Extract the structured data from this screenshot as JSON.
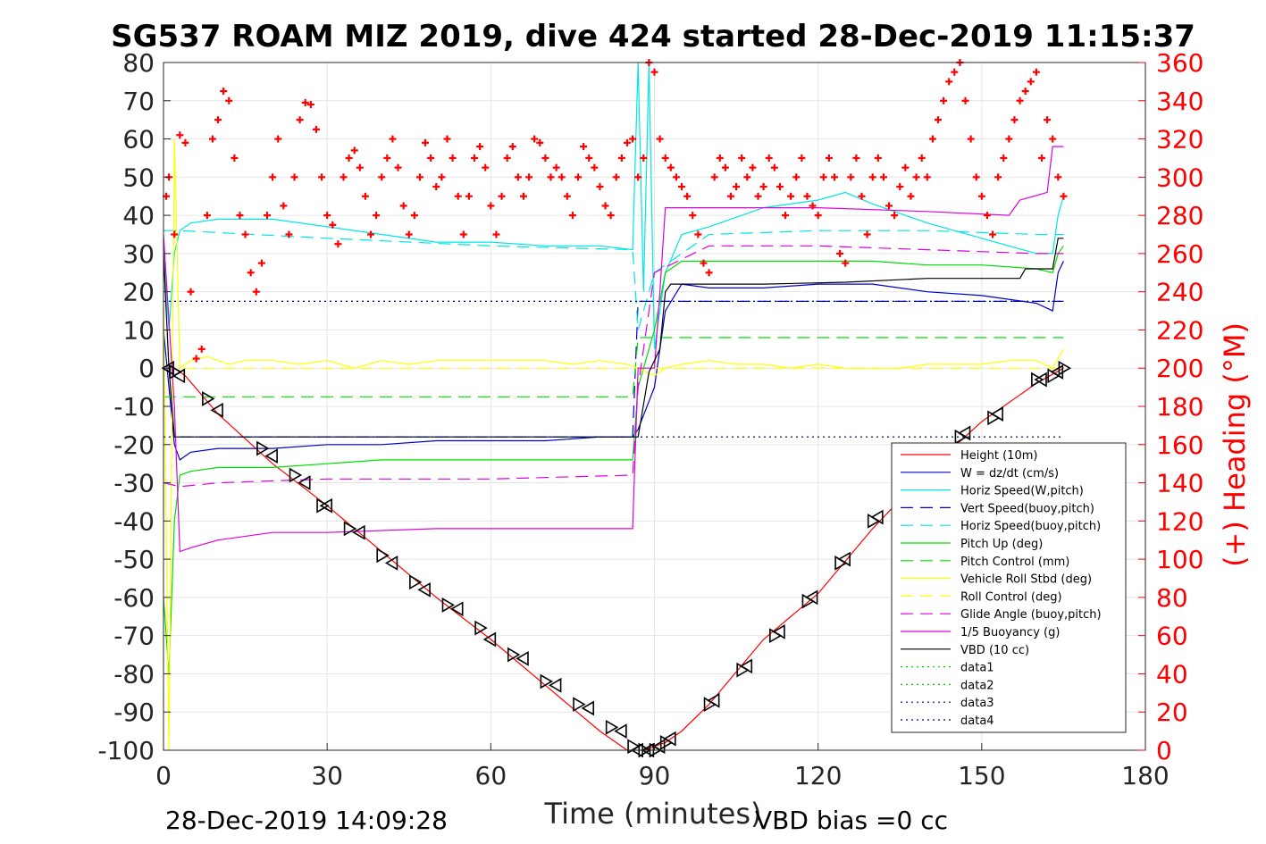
{
  "chart_data": {
    "type": "line",
    "title": "SG537 ROAM MIZ 2019, dive 424 started 28-Dec-2019 11:15:37",
    "xlabel": "Time (minutes)",
    "ylabel_right": "(+) Heading (°M)",
    "footer_left": "28-Dec-2019 14:09:28",
    "footer_right": "VBD bias =0 cc",
    "xlim": [
      0,
      180
    ],
    "ylim_left": [
      -100,
      80
    ],
    "ylim_right": [
      0,
      360
    ],
    "xticks": [
      "0",
      "30",
      "60",
      "90",
      "120",
      "150",
      "180"
    ],
    "yticks_left": [
      "80",
      "70",
      "60",
      "50",
      "40",
      "30",
      "20",
      "10",
      "0",
      "-10",
      "-20",
      "-30",
      "-40",
      "-50",
      "-60",
      "-70",
      "-80",
      "-90",
      "-100"
    ],
    "yticks_right": [
      "360",
      "340",
      "320",
      "300",
      "280",
      "260",
      "240",
      "220",
      "200",
      "180",
      "160",
      "140",
      "120",
      "100",
      "80",
      "60",
      "40",
      "20",
      "0"
    ],
    "grid": true,
    "legend_position": "bottom-right",
    "legend": [
      {
        "label": "Height (10m)",
        "color": "#ff0000",
        "dash": "solid"
      },
      {
        "label": "W = dz/dt (cm/s)",
        "color": "#0000cc",
        "dash": "solid"
      },
      {
        "label": "Horiz Speed(W,pitch)",
        "color": "#00e5e5",
        "dash": "solid"
      },
      {
        "label": "Vert Speed(buoy,pitch)",
        "color": "#0000cc",
        "dash": "dashed"
      },
      {
        "label": "Horiz Speed(buoy,pitch)",
        "color": "#00e5e5",
        "dash": "dashed"
      },
      {
        "label": "Pitch Up (deg)",
        "color": "#00dd00",
        "dash": "solid"
      },
      {
        "label": "Pitch Control (mm)",
        "color": "#00dd00",
        "dash": "dashed"
      },
      {
        "label": "Vehicle Roll Stbd (deg)",
        "color": "#ffff00",
        "dash": "solid"
      },
      {
        "label": "Roll Control (deg)",
        "color": "#ffff00",
        "dash": "dashed"
      },
      {
        "label": "Glide Angle (buoy,pitch)",
        "color": "#dd00dd",
        "dash": "dashed"
      },
      {
        "label": "1/5 Buoyancy (g)",
        "color": "#dd00dd",
        "dash": "solid"
      },
      {
        "label": "VBD (10 cc)",
        "color": "#000000",
        "dash": "solid"
      },
      {
        "label": "data1",
        "color": "#00cc00",
        "dash": "dotted"
      },
      {
        "label": "data2",
        "color": "#00cc00",
        "dash": "dotted"
      },
      {
        "label": "data3",
        "color": "#000080",
        "dash": "dotted"
      },
      {
        "label": "data4",
        "color": "#000080",
        "dash": "dotted"
      }
    ],
    "series": [
      {
        "name": "Height (10m)",
        "color": "#ff0000",
        "dash": "solid",
        "x": [
          0,
          2,
          4,
          10,
          20,
          30,
          40,
          50,
          60,
          70,
          80,
          85,
          88,
          90,
          92,
          95,
          100,
          110,
          120,
          130,
          140,
          150,
          160,
          165
        ],
        "y": [
          0,
          0,
          -2,
          -12,
          -25,
          -36,
          -48,
          -60,
          -71,
          -83,
          -95,
          -100,
          -100,
          -99,
          -98,
          -95,
          -88,
          -71,
          -59,
          -42,
          -27,
          -14,
          -4,
          0
        ]
      },
      {
        "name": "W = dz/dt (cm/s)",
        "color": "#0000cc",
        "dash": "solid",
        "x": [
          0,
          1,
          2,
          3,
          5,
          10,
          20,
          30,
          40,
          50,
          60,
          70,
          80,
          86,
          87,
          90,
          92,
          95,
          100,
          110,
          120,
          130,
          140,
          150,
          160,
          163,
          164,
          165
        ],
        "y": [
          10,
          -5,
          -20,
          -24,
          -22,
          -21,
          -21,
          -20,
          -20,
          -19,
          -19,
          -19,
          -18,
          -18,
          -16,
          -5,
          15,
          22,
          21,
          21,
          22,
          22,
          20,
          19,
          17,
          15,
          25,
          28
        ]
      },
      {
        "name": "Horiz Speed(W,pitch)",
        "color": "#00e5e5",
        "dash": "solid",
        "x": [
          0,
          1,
          2,
          3,
          5,
          10,
          20,
          30,
          40,
          50,
          60,
          70,
          80,
          86,
          87,
          88,
          89,
          90,
          92,
          95,
          100,
          110,
          120,
          125,
          130,
          140,
          150,
          160,
          163,
          164,
          165
        ],
        "y": [
          30,
          10,
          30,
          36,
          38,
          39,
          39,
          37,
          35,
          33,
          33,
          32,
          32,
          31,
          80,
          20,
          80,
          5,
          25,
          35,
          37,
          42,
          44,
          46,
          43,
          38,
          34,
          30,
          30,
          40,
          45
        ]
      },
      {
        "name": "Vert Speed(buoy,pitch)",
        "color": "#0000cc",
        "dash": "dashed",
        "x": [
          3,
          86,
          87,
          165
        ],
        "y": [
          -18,
          -18,
          17.5,
          17.5
        ]
      },
      {
        "name": "Horiz Speed(buoy,pitch)",
        "color": "#00e5e5",
        "dash": "dashed",
        "x": [
          0,
          3,
          30,
          60,
          86,
          87,
          90,
          100,
          120,
          140,
          160,
          165
        ],
        "y": [
          36,
          36,
          34,
          32,
          31,
          10,
          25,
          35,
          36,
          36,
          35,
          35
        ]
      },
      {
        "name": "Pitch Up (deg)",
        "color": "#00dd00",
        "dash": "solid",
        "x": [
          0,
          1,
          2,
          3,
          5,
          10,
          20,
          30,
          40,
          50,
          60,
          70,
          80,
          86,
          87,
          90,
          92,
          95,
          100,
          110,
          120,
          130,
          140,
          150,
          160,
          163,
          164,
          165
        ],
        "y": [
          -60,
          -80,
          -40,
          -28,
          -27,
          -26,
          -26,
          -25,
          -24,
          -24,
          -24,
          -24,
          -24,
          -24,
          -5,
          10,
          25,
          28,
          28,
          28,
          28,
          28,
          27,
          27,
          26,
          25,
          30,
          32
        ]
      },
      {
        "name": "Pitch Control (mm)",
        "color": "#00dd00",
        "dash": "dashed",
        "x": [
          0,
          3,
          86,
          87,
          165
        ],
        "y": [
          -7.5,
          -7.5,
          -7.5,
          8,
          8
        ]
      },
      {
        "name": "Vehicle Roll Stbd (deg)",
        "color": "#ffff00",
        "dash": "solid",
        "x": [
          0,
          1,
          2,
          3,
          5,
          8,
          10,
          12,
          15,
          20,
          25,
          30,
          35,
          40,
          45,
          50,
          55,
          60,
          65,
          70,
          75,
          80,
          85,
          87,
          90,
          92,
          95,
          100,
          105,
          110,
          115,
          120,
          125,
          130,
          135,
          140,
          145,
          150,
          155,
          160,
          163,
          165
        ],
        "y": [
          15,
          -100,
          60,
          0,
          2,
          3,
          2,
          1,
          2,
          2,
          1,
          2,
          0,
          2,
          1,
          2,
          2,
          2,
          2,
          2,
          1,
          2,
          1,
          0,
          -2,
          0,
          1,
          2,
          1,
          1,
          0,
          1,
          0,
          0,
          0,
          1,
          1,
          1,
          2,
          2,
          0,
          5
        ]
      },
      {
        "name": "Roll Control (deg)",
        "color": "#ffff00",
        "dash": "dashed",
        "x": [
          0,
          165
        ],
        "y": [
          0,
          0
        ]
      },
      {
        "name": "Glide Angle (buoy,pitch)",
        "color": "#dd00dd",
        "dash": "dashed",
        "x": [
          0,
          3,
          10,
          30,
          60,
          86,
          87,
          90,
          100,
          120,
          140,
          160,
          165
        ],
        "y": [
          -30,
          -31,
          -30,
          -29,
          -29,
          -28,
          -5,
          25,
          32,
          32,
          31,
          30,
          30
        ]
      },
      {
        "name": "1/5 Buoyancy (g)",
        "color": "#dd00dd",
        "dash": "solid",
        "x": [
          0,
          2,
          3,
          5,
          10,
          20,
          30,
          50,
          70,
          86,
          87,
          90,
          91,
          92,
          100,
          120,
          140,
          155,
          157,
          162,
          163,
          165
        ],
        "y": [
          35,
          -10,
          -48,
          -47,
          -45,
          -43,
          -43,
          -42,
          -42,
          -42,
          0,
          0,
          20,
          42,
          42,
          42,
          41,
          40,
          44,
          46,
          58,
          58
        ]
      },
      {
        "name": "VBD (10 cc)",
        "color": "#000000",
        "dash": "solid",
        "x": [
          0,
          1,
          2,
          86,
          87,
          89,
          91,
          92,
          93,
          110,
          125,
          140,
          157,
          158,
          163,
          164,
          165
        ],
        "y": [
          30,
          0,
          -18,
          -18,
          -18,
          -1,
          5,
          20,
          22,
          22,
          22.5,
          23.5,
          23.5,
          26,
          26,
          34,
          34
        ]
      },
      {
        "name": "data1",
        "color": "#00cc00",
        "dash": "dotted",
        "x": [
          0,
          165
        ],
        "y": [
          17.5,
          17.5
        ]
      },
      {
        "name": "data2",
        "color": "#00cc00",
        "dash": "dotted",
        "x": [
          0,
          165
        ],
        "y": [
          -18,
          -18
        ]
      },
      {
        "name": "data3",
        "color": "#000080",
        "dash": "dotted",
        "x": [
          0,
          165
        ],
        "y": [
          17.5,
          17.5
        ]
      },
      {
        "name": "data4",
        "color": "#000080",
        "dash": "dotted",
        "x": [
          0,
          165
        ],
        "y": [
          -18,
          -18
        ]
      }
    ],
    "heading_series": {
      "name": "(+) Heading (°M)",
      "color": "#ff0000",
      "marker": "+",
      "x": [
        0.5,
        1,
        2,
        3,
        4,
        5,
        6,
        7,
        8,
        9,
        10,
        11,
        12,
        13,
        14,
        15,
        16,
        17,
        18,
        19,
        20,
        21,
        22,
        23,
        24,
        25,
        26,
        27,
        28,
        29,
        30,
        31,
        32,
        33,
        34,
        35,
        36,
        37,
        38,
        39,
        40,
        41,
        42,
        43,
        44,
        45,
        46,
        47,
        48,
        49,
        50,
        51,
        52,
        53,
        54,
        55,
        56,
        57,
        58,
        59,
        60,
        61,
        62,
        63,
        64,
        65,
        66,
        67,
        68,
        69,
        70,
        71,
        72,
        73,
        74,
        75,
        76,
        77,
        78,
        79,
        80,
        81,
        82,
        83,
        84,
        85,
        86,
        87,
        88,
        89,
        90,
        91,
        92,
        93,
        94,
        95,
        96,
        97,
        98,
        99,
        100,
        101,
        102,
        103,
        104,
        105,
        106,
        107,
        108,
        109,
        110,
        111,
        112,
        113,
        114,
        115,
        116,
        117,
        118,
        119,
        120,
        121,
        122,
        123,
        124,
        125,
        126,
        127,
        128,
        129,
        130,
        131,
        132,
        133,
        134,
        135,
        136,
        137,
        138,
        139,
        140,
        141,
        142,
        143,
        144,
        145,
        146,
        147,
        148,
        149,
        150,
        151,
        152,
        153,
        154,
        155,
        156,
        157,
        158,
        159,
        160,
        161,
        162,
        163,
        164,
        165
      ],
      "y": [
        290,
        300,
        270,
        322,
        318,
        240,
        205,
        210,
        280,
        320,
        330,
        345,
        340,
        310,
        280,
        270,
        250,
        240,
        255,
        280,
        300,
        320,
        285,
        270,
        300,
        330,
        339,
        338,
        325,
        300,
        280,
        275,
        265,
        300,
        310,
        314,
        305,
        290,
        270,
        280,
        300,
        310,
        320,
        305,
        285,
        270,
        280,
        300,
        318,
        310,
        295,
        300,
        320,
        310,
        290,
        270,
        290,
        310,
        316,
        305,
        285,
        270,
        290,
        310,
        316,
        300,
        290,
        300,
        320,
        318,
        310,
        300,
        305,
        300,
        290,
        280,
        300,
        316,
        310,
        305,
        295,
        285,
        280,
        300,
        310,
        318,
        320,
        300,
        310,
        360,
        355,
        320,
        310,
        305,
        300,
        295,
        290,
        280,
        270,
        255,
        250,
        300,
        310,
        305,
        290,
        295,
        310,
        300,
        305,
        290,
        295,
        310,
        305,
        295,
        280,
        290,
        300,
        310,
        290,
        285,
        280,
        300,
        310,
        300,
        260,
        255,
        300,
        310,
        290,
        270,
        300,
        310,
        300,
        285,
        280,
        295,
        305,
        290,
        300,
        310,
        300,
        320,
        330,
        340,
        350,
        355,
        360,
        340,
        320,
        300,
        290,
        280,
        270,
        300,
        310,
        320,
        330,
        340,
        345,
        350,
        355,
        310,
        330,
        320,
        300,
        290
      ]
    },
    "dive_markers": {
      "x": [
        1,
        2,
        3,
        8,
        10,
        18,
        20,
        24,
        26,
        29,
        30,
        34,
        36,
        40,
        42,
        46,
        48,
        52,
        54,
        58,
        60,
        64,
        66,
        70,
        72,
        76,
        78,
        82,
        84,
        86,
        87,
        88,
        89,
        90,
        91,
        92,
        93,
        100,
        101,
        106,
        107,
        112,
        113,
        118,
        119,
        124,
        125,
        130,
        131,
        146,
        147,
        152,
        153,
        160,
        161,
        163,
        164,
        165
      ],
      "y": [
        0,
        -1,
        -2,
        -8,
        -11,
        -21,
        -23,
        -28,
        -30,
        -36,
        -36,
        -42,
        -43,
        -49,
        -51,
        -56,
        -58,
        -62,
        -63,
        -68,
        -71,
        -75,
        -76,
        -82,
        -83,
        -88,
        -89,
        -94,
        -95,
        -99,
        -100,
        -100,
        -100,
        -100,
        -99,
        -98,
        -97,
        -88,
        -87,
        -79,
        -78,
        -70,
        -69,
        -61,
        -60,
        -51,
        -50,
        -40,
        -39,
        -18,
        -17,
        -13,
        -12,
        -3,
        -3,
        -2,
        -1,
        0
      ]
    }
  }
}
